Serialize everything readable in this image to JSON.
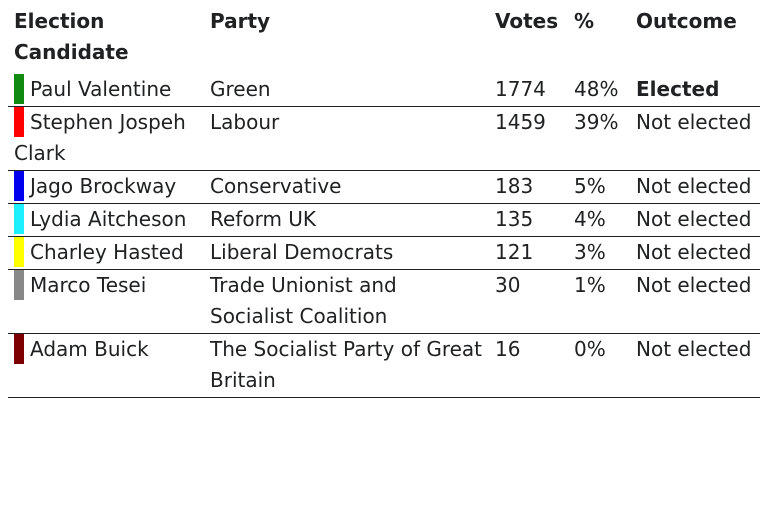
{
  "headers": {
    "candidate": "Election Candidate",
    "party": "Party",
    "votes": "Votes",
    "pct": "%",
    "outcome": "Outcome"
  },
  "rows": [
    {
      "candidate": "Paul Valentine",
      "party": "Green",
      "votes": "1774",
      "pct": "48%",
      "outcome": "Elected",
      "color": "#118a11",
      "elected": true
    },
    {
      "candidate": "Stephen Jospeh Clark",
      "party": "Labour",
      "votes": "1459",
      "pct": "39%",
      "outcome": "Not elected",
      "color": "#ff0000",
      "elected": false
    },
    {
      "candidate": "Jago Brockway",
      "party": "Conservative",
      "votes": "183",
      "pct": "5%",
      "outcome": "Not elected",
      "color": "#0000ee",
      "elected": false
    },
    {
      "candidate": "Lydia Aitcheson",
      "party": "Reform UK",
      "votes": "135",
      "pct": "4%",
      "outcome": "Not elected",
      "color": "#1ff0ff",
      "elected": false
    },
    {
      "candidate": "Charley Hasted",
      "party": "Liberal Democrats",
      "votes": "121",
      "pct": "3%",
      "outcome": "Not elected",
      "color": "#ffff00",
      "elected": false
    },
    {
      "candidate": "Marco Tesei",
      "party": "Trade Unionist and Socialist Coalition",
      "votes": "30",
      "pct": "1%",
      "outcome": "Not elected",
      "color": "#888888",
      "elected": false
    },
    {
      "candidate": "Adam Buick",
      "party": "The Socialist Party of Great Britain",
      "votes": "16",
      "pct": "0%",
      "outcome": "Not elected",
      "color": "#7f0000",
      "elected": false
    }
  ]
}
